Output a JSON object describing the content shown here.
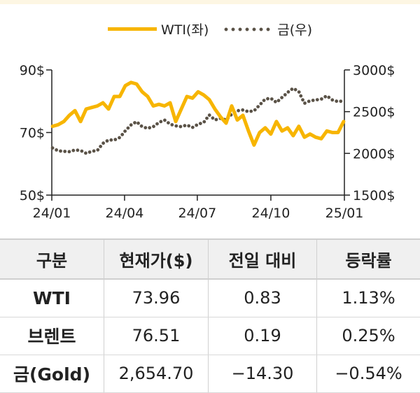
{
  "chart_data": {
    "type": "line",
    "legend": [
      {
        "label": "WTI(좌)",
        "color": "#f7b500",
        "style": "solid"
      },
      {
        "label": "금(우)",
        "color": "#5a5247",
        "style": "dotted"
      }
    ],
    "x_ticks": [
      "24/01",
      "24/04",
      "24/07",
      "24/10",
      "25/01"
    ],
    "y_left": {
      "ticks": [
        "90$",
        "70$",
        "50$"
      ],
      "range": [
        50,
        90
      ]
    },
    "y_right": {
      "ticks": [
        "3000$",
        "2500$",
        "2000$",
        "1500$"
      ],
      "range": [
        1500,
        3000
      ]
    },
    "series": [
      {
        "name": "WTI(좌)",
        "axis": "left",
        "color": "#f7b500",
        "points": [
          [
            "2024-01-02",
            72.0
          ],
          [
            "2024-01-09",
            72.5
          ],
          [
            "2024-01-16",
            73.5
          ],
          [
            "2024-01-23",
            75.5
          ],
          [
            "2024-01-30",
            77.0
          ],
          [
            "2024-02-06",
            73.5
          ],
          [
            "2024-02-13",
            77.5
          ],
          [
            "2024-02-20",
            78.0
          ],
          [
            "2024-02-27",
            78.5
          ],
          [
            "2024-03-05",
            79.5
          ],
          [
            "2024-03-12",
            77.5
          ],
          [
            "2024-03-19",
            81.5
          ],
          [
            "2024-03-26",
            81.5
          ],
          [
            "2024-04-02",
            85.0
          ],
          [
            "2024-04-09",
            86.0
          ],
          [
            "2024-04-16",
            85.5
          ],
          [
            "2024-04-23",
            83.0
          ],
          [
            "2024-04-30",
            81.5
          ],
          [
            "2024-05-07",
            78.5
          ],
          [
            "2024-05-14",
            79.0
          ],
          [
            "2024-05-21",
            78.5
          ],
          [
            "2024-05-28",
            79.5
          ],
          [
            "2024-06-04",
            73.5
          ],
          [
            "2024-06-11",
            77.5
          ],
          [
            "2024-06-18",
            81.5
          ],
          [
            "2024-06-25",
            81.0
          ],
          [
            "2024-07-02",
            83.0
          ],
          [
            "2024-07-09",
            82.0
          ],
          [
            "2024-07-16",
            80.5
          ],
          [
            "2024-07-23",
            77.5
          ],
          [
            "2024-07-30",
            75.0
          ],
          [
            "2024-08-06",
            73.0
          ],
          [
            "2024-08-13",
            78.5
          ],
          [
            "2024-08-20",
            74.0
          ],
          [
            "2024-08-27",
            75.5
          ],
          [
            "2024-09-03",
            70.5
          ],
          [
            "2024-09-10",
            66.0
          ],
          [
            "2024-09-17",
            70.0
          ],
          [
            "2024-09-24",
            71.5
          ],
          [
            "2024-10-01",
            69.5
          ],
          [
            "2024-10-08",
            73.5
          ],
          [
            "2024-10-15",
            70.5
          ],
          [
            "2024-10-22",
            71.5
          ],
          [
            "2024-10-29",
            69.0
          ],
          [
            "2024-11-05",
            72.0
          ],
          [
            "2024-11-12",
            68.5
          ],
          [
            "2024-11-19",
            69.5
          ],
          [
            "2024-11-26",
            68.5
          ],
          [
            "2024-12-03",
            68.0
          ],
          [
            "2024-12-10",
            70.5
          ],
          [
            "2024-12-17",
            70.0
          ],
          [
            "2024-12-24",
            70.0
          ],
          [
            "2024-12-31",
            73.5
          ]
        ]
      },
      {
        "name": "금(우)",
        "axis": "right",
        "color": "#5a5247",
        "points": [
          [
            "2024-01-02",
            2065
          ],
          [
            "2024-01-09",
            2030
          ],
          [
            "2024-01-16",
            2025
          ],
          [
            "2024-01-23",
            2020
          ],
          [
            "2024-01-30",
            2040
          ],
          [
            "2024-02-06",
            2035
          ],
          [
            "2024-02-13",
            2000
          ],
          [
            "2024-02-20",
            2025
          ],
          [
            "2024-02-27",
            2035
          ],
          [
            "2024-03-05",
            2120
          ],
          [
            "2024-03-12",
            2160
          ],
          [
            "2024-03-19",
            2160
          ],
          [
            "2024-03-26",
            2190
          ],
          [
            "2024-04-02",
            2270
          ],
          [
            "2024-04-09",
            2340
          ],
          [
            "2024-04-16",
            2380
          ],
          [
            "2024-04-23",
            2320
          ],
          [
            "2024-04-30",
            2300
          ],
          [
            "2024-05-07",
            2320
          ],
          [
            "2024-05-14",
            2370
          ],
          [
            "2024-05-21",
            2400
          ],
          [
            "2024-05-28",
            2350
          ],
          [
            "2024-06-04",
            2330
          ],
          [
            "2024-06-11",
            2320
          ],
          [
            "2024-06-18",
            2340
          ],
          [
            "2024-06-25",
            2310
          ],
          [
            "2024-07-02",
            2350
          ],
          [
            "2024-07-09",
            2370
          ],
          [
            "2024-07-16",
            2460
          ],
          [
            "2024-07-23",
            2400
          ],
          [
            "2024-07-30",
            2420
          ],
          [
            "2024-08-06",
            2400
          ],
          [
            "2024-08-13",
            2470
          ],
          [
            "2024-08-20",
            2510
          ],
          [
            "2024-08-27",
            2520
          ],
          [
            "2024-09-03",
            2500
          ],
          [
            "2024-09-10",
            2510
          ],
          [
            "2024-09-17",
            2580
          ],
          [
            "2024-09-24",
            2650
          ],
          [
            "2024-10-01",
            2660
          ],
          [
            "2024-10-08",
            2610
          ],
          [
            "2024-10-15",
            2670
          ],
          [
            "2024-10-22",
            2730
          ],
          [
            "2024-10-29",
            2780
          ],
          [
            "2024-11-05",
            2740
          ],
          [
            "2024-11-12",
            2600
          ],
          [
            "2024-11-19",
            2630
          ],
          [
            "2024-11-26",
            2640
          ],
          [
            "2024-12-03",
            2650
          ],
          [
            "2024-12-10",
            2690
          ],
          [
            "2024-12-17",
            2640
          ],
          [
            "2024-12-24",
            2620
          ],
          [
            "2024-12-31",
            2630
          ]
        ]
      }
    ]
  },
  "table": {
    "headers": [
      "구분",
      "현재가($)",
      "전일 대비",
      "등락률"
    ],
    "rows": [
      [
        "WTI",
        "73.96",
        "0.83",
        "1.13%"
      ],
      [
        "브렌트",
        "76.51",
        "0.19",
        "0.25%"
      ],
      [
        "금(Gold)",
        "2,654.70",
        "−14.30",
        "−0.54%"
      ]
    ]
  }
}
